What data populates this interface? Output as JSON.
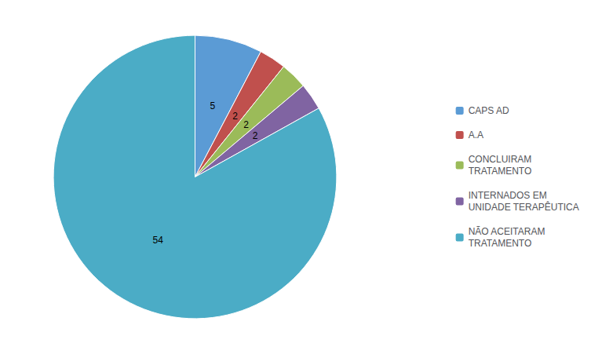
{
  "chart_data": {
    "type": "pie",
    "categories": [
      "CAPS AD",
      "A.A",
      "CONCLUIRAM\nTRATAMENTO",
      "INTERNADOS EM\nUNIDADE TERAPÊUTICA",
      "NÃO ACEITARAM\nTRATAMENTO"
    ],
    "values": [
      5,
      2,
      2,
      2,
      54
    ],
    "colors": [
      "#5b9bd5",
      "#c0504d",
      "#9bbb59",
      "#8064a2",
      "#4bacc6"
    ],
    "data_labels": true,
    "legend": "right"
  }
}
